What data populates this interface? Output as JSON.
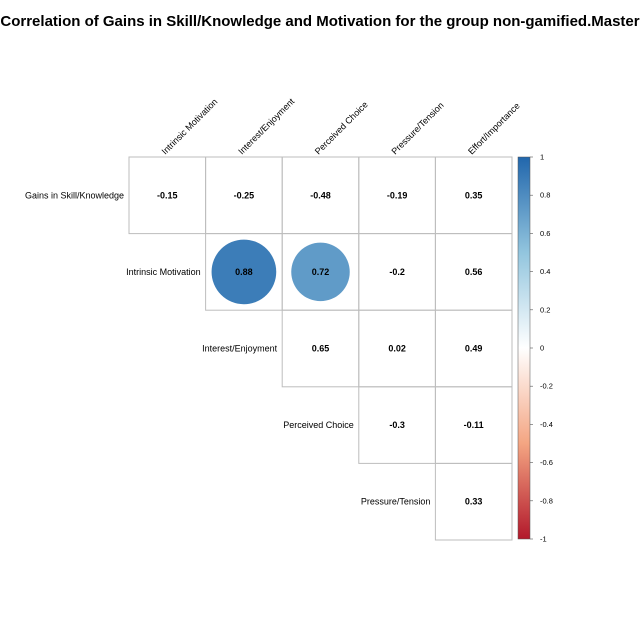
{
  "chart_data": {
    "type": "heatmap",
    "title": "Correlation of Gains in Skill/Knowledge and Motivation for the group non-gamified.Master",
    "columns": [
      "Intrinsic Motivation",
      "Interest/Enjoyment",
      "Perceived Choice",
      "Pressure/Tension",
      "Effort/Importance"
    ],
    "rows": [
      "Gains in Skill/Knowledge",
      "Intrinsic Motivation",
      "Interest/Enjoyment",
      "Perceived Choice",
      "Pressure/Tension"
    ],
    "cells": [
      {
        "row": 0,
        "col": 0,
        "value": -0.15,
        "label": "-0.15",
        "circle": false
      },
      {
        "row": 0,
        "col": 1,
        "value": -0.25,
        "label": "-0.25",
        "circle": false
      },
      {
        "row": 0,
        "col": 2,
        "value": -0.48,
        "label": "-0.48",
        "circle": false
      },
      {
        "row": 0,
        "col": 3,
        "value": -0.19,
        "label": "-0.19",
        "circle": false
      },
      {
        "row": 0,
        "col": 4,
        "value": 0.35,
        "label": "0.35",
        "circle": false
      },
      {
        "row": 1,
        "col": 1,
        "value": 0.88,
        "label": "0.88",
        "circle": true
      },
      {
        "row": 1,
        "col": 2,
        "value": 0.72,
        "label": "0.72",
        "circle": true
      },
      {
        "row": 1,
        "col": 3,
        "value": -0.2,
        "label": "-0.2",
        "circle": false
      },
      {
        "row": 1,
        "col": 4,
        "value": 0.56,
        "label": "0.56",
        "circle": false
      },
      {
        "row": 2,
        "col": 2,
        "value": 0.65,
        "label": "0.65",
        "circle": false
      },
      {
        "row": 2,
        "col": 3,
        "value": 0.02,
        "label": "0.02",
        "circle": false
      },
      {
        "row": 2,
        "col": 4,
        "value": 0.49,
        "label": "0.49",
        "circle": false
      },
      {
        "row": 3,
        "col": 3,
        "value": -0.3,
        "label": "-0.3",
        "circle": false
      },
      {
        "row": 3,
        "col": 4,
        "value": -0.11,
        "label": "-0.11",
        "circle": false
      },
      {
        "row": 4,
        "col": 4,
        "value": 0.33,
        "label": "0.33",
        "circle": false
      }
    ],
    "colorbar": {
      "range": [
        -1,
        1
      ],
      "ticks": [
        1,
        0.8,
        0.6,
        0.4,
        0.2,
        0,
        -0.2,
        -0.4,
        -0.6,
        -0.8,
        -1
      ],
      "tick_labels": [
        "1",
        "0.8",
        "0.6",
        "0.4",
        "0.2",
        "0",
        "-0.2",
        "-0.4",
        "-0.6",
        "-0.8",
        "-1"
      ],
      "colors": [
        "#B2182B",
        "#F4A582",
        "#FFFFFF",
        "#92C5DE",
        "#2166AC"
      ]
    }
  }
}
